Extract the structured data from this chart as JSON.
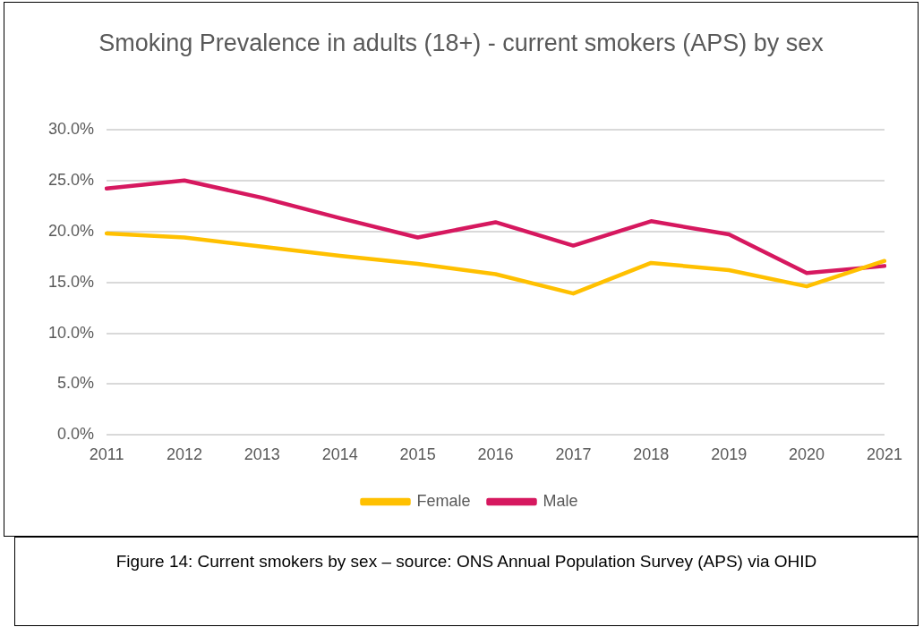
{
  "chart_data": {
    "type": "line",
    "title": "Smoking Prevalence in adults (18+) - current smokers (APS) by sex",
    "categories": [
      "2011",
      "2012",
      "2013",
      "2014",
      "2015",
      "2016",
      "2017",
      "2018",
      "2019",
      "2020",
      "2021"
    ],
    "series": [
      {
        "name": "Female",
        "color": "#ffc000",
        "values": [
          19.8,
          19.4,
          18.5,
          17.6,
          16.8,
          15.8,
          13.9,
          16.9,
          16.2,
          14.6,
          17.1
        ]
      },
      {
        "name": "Male",
        "color": "#d6185f",
        "values": [
          24.2,
          25.0,
          23.3,
          21.3,
          19.4,
          20.9,
          18.6,
          21.0,
          19.7,
          15.9,
          16.6
        ]
      }
    ],
    "ylim": [
      0,
      30
    ],
    "yticks": [
      {
        "value": 0,
        "label": "0.0%"
      },
      {
        "value": 5,
        "label": "5.0%"
      },
      {
        "value": 10,
        "label": "10.0%"
      },
      {
        "value": 15,
        "label": "15.0%"
      },
      {
        "value": 20,
        "label": "20.0%"
      },
      {
        "value": 25,
        "label": "25.0%"
      },
      {
        "value": 30,
        "label": "30.0%"
      }
    ],
    "grid": "y",
    "legend": "bottom",
    "marker": "none",
    "line_style": "solid",
    "annotations": [
      "Figure 14: Current smokers by sex – source: ONS Annual Population Survey (APS) via OHID"
    ]
  }
}
